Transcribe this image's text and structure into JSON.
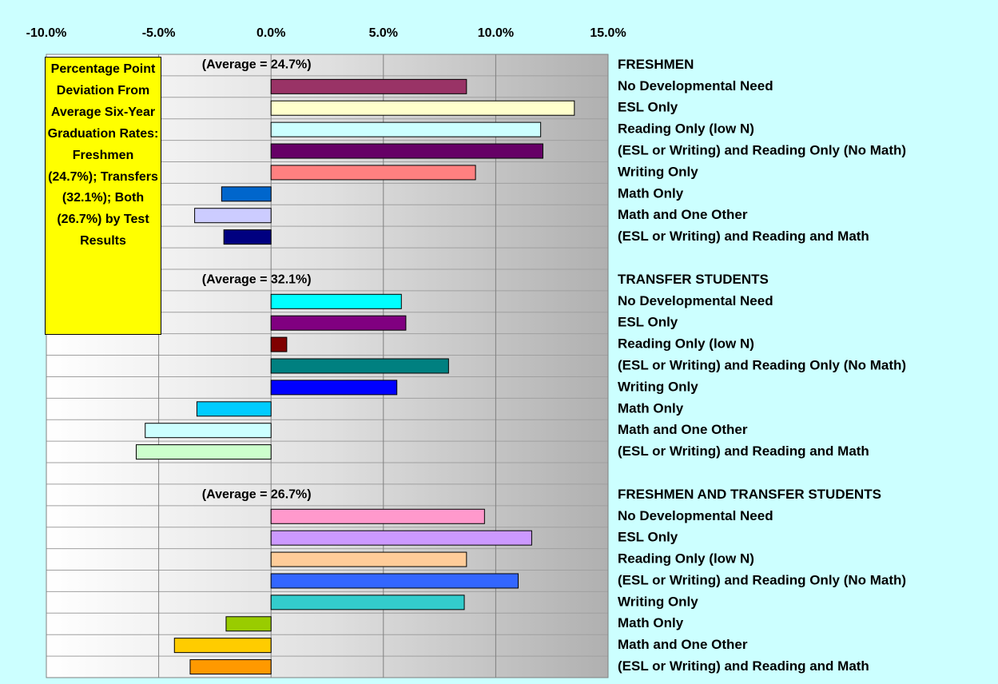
{
  "chart_data": {
    "type": "bar",
    "orientation": "horizontal",
    "annotation": "Percentage Point Deviation From Average Six-Year Graduation Rates: Freshmen (24.7%); Transfers (32.1%); Both (26.7%) by Test Results",
    "xlim": [
      -10,
      15
    ],
    "xticks": [
      {
        "value": -10,
        "label": "-10.0%"
      },
      {
        "value": -5,
        "label": "-5.0%"
      },
      {
        "value": 0,
        "label": "0.0%"
      },
      {
        "value": 5,
        "label": "5.0%"
      },
      {
        "value": 10,
        "label": "10.0%"
      },
      {
        "value": 15,
        "label": "15.0%"
      }
    ],
    "grid": true,
    "groups": [
      {
        "name": "FRESHMEN",
        "note": "(Average = 24.7%)",
        "categories": [
          "No Developmental Need",
          "ESL Only",
          "Reading Only (low N)",
          "(ESL or Writing) and Reading Only (No Math)",
          "Writing Only",
          "Math Only",
          "Math and One Other",
          "(ESL or Writing) and Reading and Math"
        ],
        "values": [
          8.7,
          13.5,
          12.0,
          12.1,
          9.1,
          -2.2,
          -3.4,
          -2.1
        ],
        "colors": [
          "#993366",
          "#ffffcc",
          "#ccffff",
          "#660066",
          "#ff8080",
          "#0066cc",
          "#ccccff",
          "#000080"
        ]
      },
      {
        "name": "TRANSFER STUDENTS",
        "note": "(Average = 32.1%)",
        "categories": [
          "No Developmental Need",
          "ESL Only",
          "Reading Only (low N)",
          "(ESL or Writing) and Reading Only (No Math)",
          "Writing Only",
          "Math Only",
          "Math and One Other",
          "(ESL or Writing) and Reading and Math"
        ],
        "values": [
          5.8,
          6.0,
          0.7,
          7.9,
          5.6,
          -3.3,
          -5.6,
          -6.0
        ],
        "colors": [
          "#00ffff",
          "#800080",
          "#800000",
          "#008080",
          "#0000ff",
          "#00ccff",
          "#ccffff",
          "#ccffcc"
        ]
      },
      {
        "name": "FRESHMEN AND TRANSFER STUDENTS",
        "note": "(Average = 26.7%)",
        "categories": [
          "No Developmental Need",
          "ESL Only",
          "Reading Only (low N)",
          "(ESL or Writing) and Reading Only (No Math)",
          "Writing Only",
          "Math Only",
          "Math and One Other",
          "(ESL or Writing) and Reading and Math"
        ],
        "values": [
          9.5,
          11.6,
          8.7,
          11.0,
          8.6,
          -2.0,
          -4.3,
          -3.6
        ],
        "colors": [
          "#ff99cc",
          "#cc99ff",
          "#ffcc99",
          "#3366ff",
          "#33cccc",
          "#99cc00",
          "#ffcc00",
          "#ff9900"
        ]
      }
    ]
  }
}
